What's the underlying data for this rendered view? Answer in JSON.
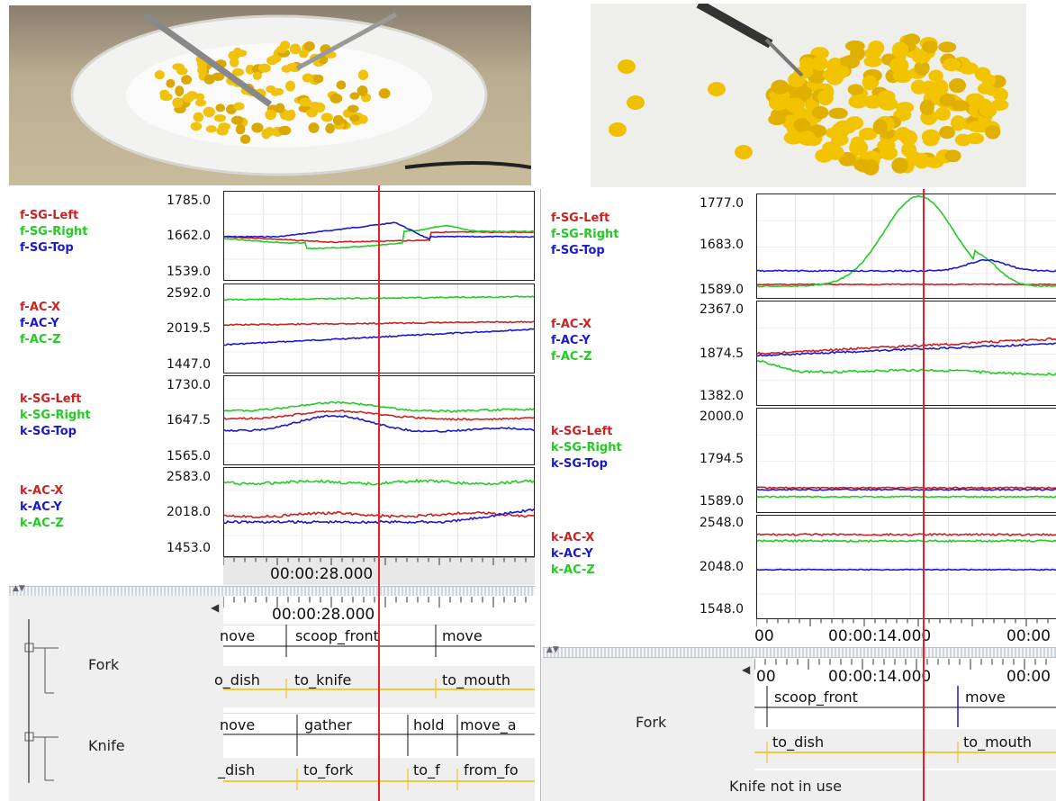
{
  "colors": {
    "red": "#cc2222",
    "green": "#22cc22",
    "blue": "#1a1acc",
    "cursor": "#e8202a",
    "annotation_line": "#e8c000"
  },
  "left": {
    "groups": [
      {
        "legend": [
          "f-SG-Left",
          "f-SG-Right",
          "f-SG-Top"
        ],
        "ticks": [
          "1785.0",
          "1662.0",
          "1539.0"
        ]
      },
      {
        "legend": [
          "f-AC-X",
          "f-AC-Y",
          "f-AC-Z"
        ],
        "ticks": [
          "2592.0",
          "2019.5",
          "1447.0"
        ]
      },
      {
        "legend": [
          "k-SG-Left",
          "k-SG-Right",
          "k-SG-Top"
        ],
        "ticks": [
          "1730.0",
          "1647.5",
          "1565.0"
        ]
      },
      {
        "legend": [
          "k-AC-X",
          "k-AC-Y",
          "k-AC-Z"
        ],
        "ticks": [
          "2583.0",
          "2018.0",
          "1453.0"
        ]
      }
    ],
    "time_label": "00:00:28.000",
    "time_label2": "00:00:28.000",
    "tiers": [
      {
        "name": "Fork",
        "upper": [
          "nove",
          "scoop_front",
          "move"
        ],
        "lower": [
          "o_dish",
          "to_knife",
          "to_mouth"
        ]
      },
      {
        "name": "Knife",
        "upper": [
          "nove",
          "gather",
          "hold",
          "move_a"
        ],
        "lower": [
          "_dish",
          "to_fork",
          "to_f",
          "from_fo"
        ]
      }
    ]
  },
  "right": {
    "groups": [
      {
        "legend": [
          "f-SG-Left",
          "f-SG-Right",
          "f-SG-Top"
        ],
        "ticks": [
          "1777.0",
          "1683.0",
          "1589.0"
        ]
      },
      {
        "legend": [
          "f-AC-X",
          "f-AC-Y",
          "f-AC-Z"
        ],
        "ticks": [
          "2367.0",
          "1874.5",
          "1382.0"
        ]
      },
      {
        "legend": [
          "k-SG-Left",
          "k-SG-Right",
          "k-SG-Top"
        ],
        "ticks": [
          "2000.0",
          "1794.5",
          "1589.0"
        ]
      },
      {
        "legend": [
          "k-AC-X",
          "k-AC-Y",
          "k-AC-Z"
        ],
        "ticks": [
          "2548.0",
          "2048.0",
          "1548.0"
        ]
      }
    ],
    "time_row": [
      "00",
      "00:00:14.000",
      "00:00"
    ],
    "time_row2": [
      "00",
      "00:00:14.000",
      "00:00"
    ],
    "tiers": [
      {
        "name": "Fork",
        "upper": [
          "scoop_front",
          "move"
        ],
        "lower": [
          "to_dish",
          "to_mouth"
        ]
      }
    ],
    "knife_note": "Knife not in use"
  }
}
